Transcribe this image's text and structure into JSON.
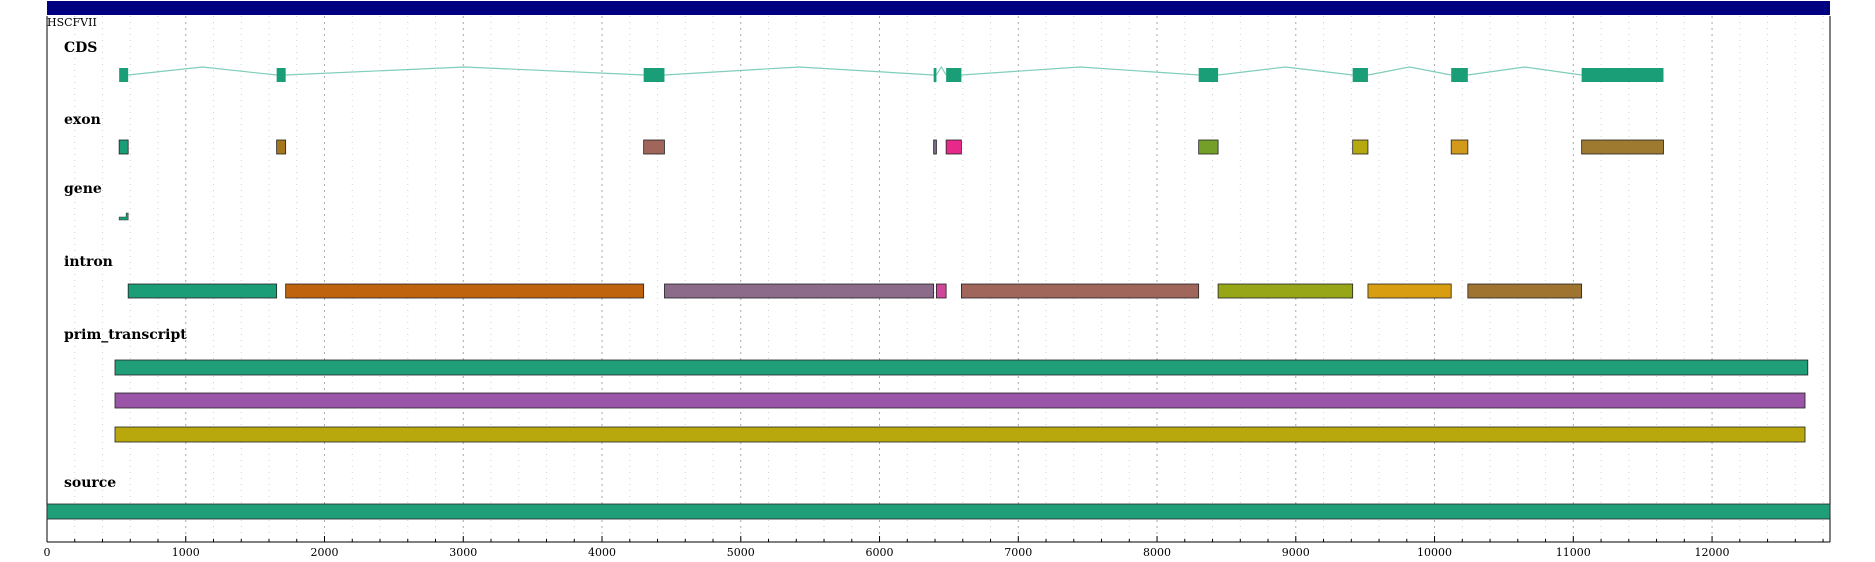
{
  "title": "HSCFVII",
  "colors": {
    "header_bar": "#000080",
    "cds": "#1a9e77",
    "connector": "#7fcdbb",
    "grid": "#9a9a9a"
  },
  "axis": {
    "min": 0,
    "max": 12850,
    "ticks": [
      0,
      1000,
      2000,
      3000,
      4000,
      5000,
      6000,
      7000,
      8000,
      9000,
      10000,
      11000,
      12000
    ],
    "minor_step": 200
  },
  "tracks": [
    {
      "name": "CDS",
      "kind": "cds",
      "features": [
        {
          "start": 520,
          "end": 585
        },
        {
          "start": 1655,
          "end": 1720
        },
        {
          "start": 4300,
          "end": 4450
        },
        {
          "start": 6390,
          "end": 6410
        },
        {
          "start": 6480,
          "end": 6590
        },
        {
          "start": 8300,
          "end": 8440
        },
        {
          "start": 9410,
          "end": 9520
        },
        {
          "start": 10120,
          "end": 10240
        },
        {
          "start": 11060,
          "end": 11650
        }
      ]
    },
    {
      "name": "exon",
      "kind": "exon",
      "features": [
        {
          "start": 520,
          "end": 585,
          "color": "#1a9e77"
        },
        {
          "start": 1655,
          "end": 1720,
          "color": "#a6761d"
        },
        {
          "start": 4300,
          "end": 4450,
          "color": "#a0665c"
        },
        {
          "start": 6390,
          "end": 6410,
          "color": "#7a6a8c"
        },
        {
          "start": 6480,
          "end": 6590,
          "color": "#e7298a"
        },
        {
          "start": 8300,
          "end": 8440,
          "color": "#74a02a"
        },
        {
          "start": 9410,
          "end": 9520,
          "color": "#b5a90f"
        },
        {
          "start": 10120,
          "end": 10240,
          "color": "#d29a1a"
        },
        {
          "start": 11060,
          "end": 11650,
          "color": "#9e7a30"
        }
      ]
    },
    {
      "name": "gene",
      "kind": "gene",
      "features": [
        {
          "start": 520,
          "end": 585,
          "color": "#1a9e77"
        }
      ]
    },
    {
      "name": "intron",
      "kind": "intron",
      "features": [
        {
          "start": 585,
          "end": 1655,
          "color": "#1b9e77"
        },
        {
          "start": 1720,
          "end": 4300,
          "color": "#c0630f"
        },
        {
          "start": 4450,
          "end": 6390,
          "color": "#8c6a8a"
        },
        {
          "start": 6410,
          "end": 6480,
          "color": "#d0479a"
        },
        {
          "start": 6590,
          "end": 8300,
          "color": "#a0665c"
        },
        {
          "start": 8440,
          "end": 9410,
          "color": "#96a617"
        },
        {
          "start": 9520,
          "end": 10120,
          "color": "#d99d12"
        },
        {
          "start": 10240,
          "end": 11060,
          "color": "#9e7430"
        }
      ]
    },
    {
      "name": "prim_transcript",
      "kind": "stack",
      "features": [
        {
          "start": 490,
          "end": 12690,
          "color": "#1f9e78"
        },
        {
          "start": 490,
          "end": 12670,
          "color": "#9a55a8"
        },
        {
          "start": 490,
          "end": 12670,
          "color": "#b8a80e"
        }
      ]
    },
    {
      "name": "source",
      "kind": "source",
      "features": [
        {
          "start": 0,
          "end": 12850,
          "color": "#1f9e78"
        }
      ]
    }
  ]
}
